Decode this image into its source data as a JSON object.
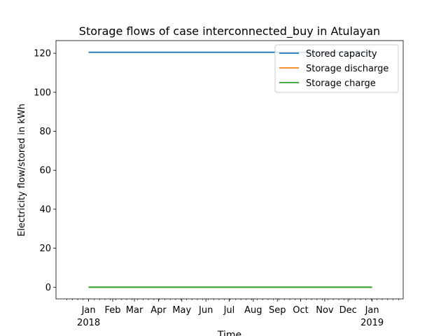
{
  "chart_data": {
    "type": "line",
    "title": "Storage flows of case interconnected_buy in Atulayan",
    "xlabel": "Time",
    "ylabel": "Electricity flow/stored in kWh",
    "xlim": [
      "2017-11-20",
      "2019-02-10"
    ],
    "ylim": [
      -6.0,
      126.5
    ],
    "grid": false,
    "legend_position": "top-right",
    "x_ticks": [
      {
        "date": "2018-01-01",
        "label": "Jan",
        "year": "2018"
      },
      {
        "date": "2018-02-01",
        "label": "Feb",
        "year": ""
      },
      {
        "date": "2018-03-01",
        "label": "Mar",
        "year": ""
      },
      {
        "date": "2018-04-01",
        "label": "Apr",
        "year": ""
      },
      {
        "date": "2018-05-01",
        "label": "May",
        "year": ""
      },
      {
        "date": "2018-06-01",
        "label": "Jun",
        "year": ""
      },
      {
        "date": "2018-07-01",
        "label": "Jul",
        "year": ""
      },
      {
        "date": "2018-08-01",
        "label": "Aug",
        "year": ""
      },
      {
        "date": "2018-09-01",
        "label": "Sep",
        "year": ""
      },
      {
        "date": "2018-10-01",
        "label": "Oct",
        "year": ""
      },
      {
        "date": "2018-11-01",
        "label": "Nov",
        "year": ""
      },
      {
        "date": "2018-12-01",
        "label": "Dec",
        "year": ""
      },
      {
        "date": "2019-01-01",
        "label": "Jan",
        "year": "2019"
      }
    ],
    "y_ticks": [
      0,
      20,
      40,
      60,
      80,
      100,
      120
    ],
    "series": [
      {
        "name": "Stored capacity",
        "color": "#1f77b4",
        "x": [
          "2018-01-01",
          "2019-01-01"
        ],
        "y": [
          120.5,
          120.5
        ]
      },
      {
        "name": "Storage discharge",
        "color": "#ff7f0e",
        "x": [
          "2018-01-01",
          "2019-01-01"
        ],
        "y": [
          0,
          0
        ]
      },
      {
        "name": "Storage charge",
        "color": "#2ca02c",
        "x": [
          "2018-01-01",
          "2019-01-01"
        ],
        "y": [
          0,
          0
        ]
      }
    ]
  }
}
